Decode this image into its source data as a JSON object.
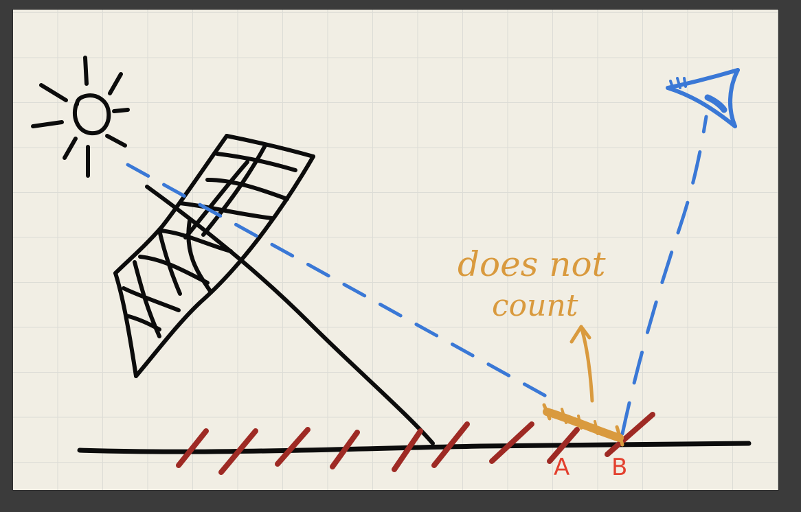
{
  "annotation": {
    "line1": "does not",
    "line2": "count"
  },
  "points": {
    "a": "A",
    "b": "B"
  },
  "colors": {
    "paper": "#f1eee4",
    "grid": "#dcdcd6",
    "ink": "#0c0c0c",
    "light_ray": "#3a78d6",
    "annotation": "#d99a3e",
    "hatching": "#9e2a24",
    "point_labels": "#e3402e"
  },
  "icons": [
    "sun-icon",
    "eye-icon",
    "solar-panel-icon",
    "arrow-up-icon"
  ]
}
